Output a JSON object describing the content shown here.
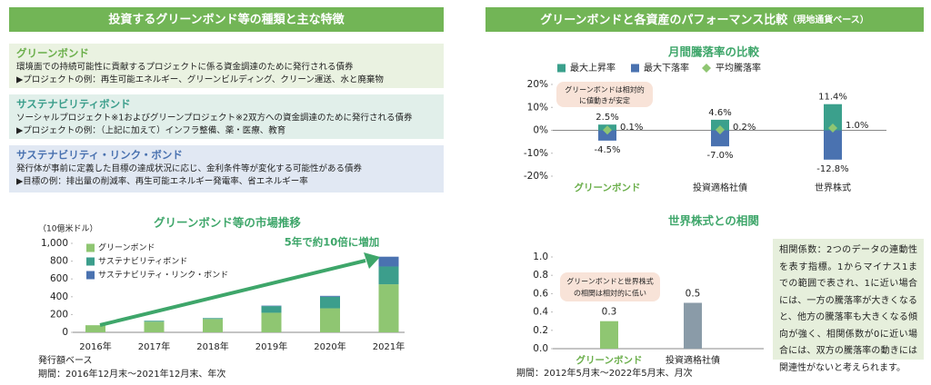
{
  "left_header": "投資するグリーンボンド等の種類と主な特徴",
  "right_header": {
    "title": "グリーンボンドと各資産のパフォーマンス比較",
    "subtitle": "（現地通貨ベース）"
  },
  "bond_types": [
    {
      "name": "グリーンボンド",
      "description": "環境面での持続可能性に貢献するプロジェクトに係る資金調達のために発行される債券",
      "example": "▶プロジェクトの例：再生可能エネルギー、グリーンビルディング、クリーン運送、水と廃棄物"
    },
    {
      "name": "サステナビリティボンド",
      "description": "ソーシャルプロジェクト※1およびグリーンプロジェクト※2双方への資金調達のために発行される債券",
      "example": "▶プロジェクトの例：（上記に加えて）インフラ整備、薬・医療、教育"
    },
    {
      "name": "サステナビリティ・リンク・ボンド",
      "description": "発行体が事前に定義した目標の達成状況に応じ、金利条件等が変化する可能性がある債券",
      "example": "▶目標の例：排出量の削減率、再生可能エネルギー発電率、省エネルギー率"
    }
  ],
  "note": "相関係数：2つのデータの連動性を表す指標。1からマイナス1までの範囲で表され、1に近い場合には、一方の騰落率が大きくなると、他方の騰落率も大きくなる傾向が強く、相関係数が0に近い場合には、双方の騰落率の動きには関連性がないと考えられます。",
  "chart_data": [
    {
      "type": "stacked_bar",
      "title": "グリーンボンド等の市場推移",
      "y_label": "（10億米ドル）",
      "categories": [
        "2016年",
        "2017年",
        "2018年",
        "2019年",
        "2020年",
        "2021年"
      ],
      "series": [
        {
          "name": "グリーンボンド",
          "color": "#8fc672",
          "values": [
            80,
            120,
            150,
            220,
            270,
            540
          ]
        },
        {
          "name": "サステナビリティボンド",
          "color": "#3c9e8c",
          "values": [
            0,
            10,
            10,
            75,
            130,
            200
          ]
        },
        {
          "name": "サステナビリティ・リンク・ボンド",
          "color": "#4a72b0",
          "values": [
            0,
            0,
            0,
            5,
            10,
            110
          ]
        }
      ],
      "ylim": [
        0,
        1000
      ],
      "yticks": [
        0,
        200,
        400,
        600,
        800,
        {
          "value": 1000,
          "label": "1,000"
        }
      ],
      "annotation": "5年で約10倍に増加",
      "footnotes": [
        "発行額ベース",
        "期間：2016年12月末～2021年12月末、年次"
      ]
    },
    {
      "type": "range_bar",
      "title": "月間騰落率の比較",
      "categories": [
        "グリーンボンド",
        "投資適格社債",
        "世界株式"
      ],
      "series": [
        {
          "name": "最大上昇率",
          "color": "#3ba08c",
          "values": [
            2.5,
            4.6,
            11.4
          ],
          "value_labels": [
            "2.5%",
            "4.6%",
            "11.4%"
          ]
        },
        {
          "name": "最大下落率",
          "color": "#4a72b0",
          "values": [
            -4.5,
            -7.0,
            -12.8
          ],
          "value_labels": [
            "-4.5%",
            "-7.0%",
            "-12.8%"
          ]
        },
        {
          "name": "平均騰落率",
          "color": "#8fc672",
          "marker": "diamond",
          "values": [
            0.1,
            0.2,
            1.0
          ],
          "value_labels": [
            "0.1%",
            "0.2%",
            "1.0%"
          ]
        }
      ],
      "ylim": [
        -20,
        20
      ],
      "yticks": [
        {
          "value": 20,
          "label": "20%"
        },
        {
          "value": 10,
          "label": "10%"
        },
        {
          "value": 0,
          "label": "0%"
        },
        {
          "value": -10,
          "label": "-10%"
        },
        {
          "value": -20,
          "label": "-20%"
        }
      ],
      "annotation": [
        "グリーンボンドは相対的",
        "に値動きが安定"
      ]
    },
    {
      "type": "bar",
      "title": "世界株式との相関",
      "categories": [
        "グリーンボンド",
        "投資適格社債"
      ],
      "values": [
        0.3,
        0.5
      ],
      "colors": [
        "#8fc672",
        "#8a9ba8"
      ],
      "ylim": [
        0,
        1
      ],
      "yticks": [
        {
          "value": 0,
          "label": "0.0"
        },
        0.2,
        0.4,
        0.6,
        0.8,
        {
          "value": 1,
          "label": "1.0"
        }
      ],
      "annotation": [
        "グリーンボンドと世界株式",
        "の相関は相対的に低い"
      ],
      "footnotes": [
        "期間：2012年5月末～2022年5月末、月次"
      ]
    }
  ]
}
